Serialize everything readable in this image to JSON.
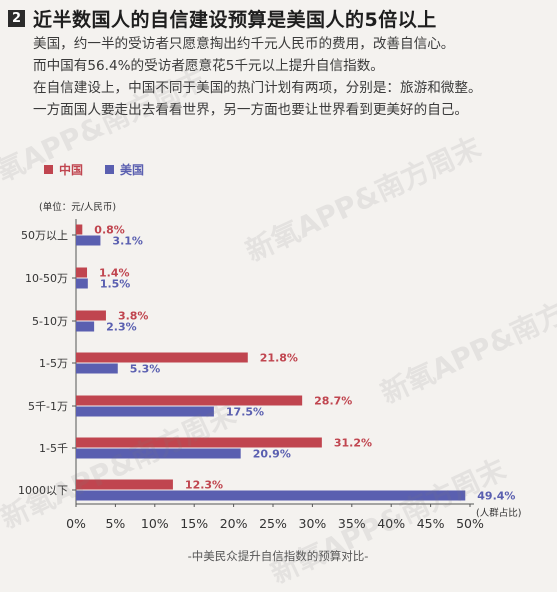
{
  "header": {
    "badge": "2",
    "title": "近半数国人的自信建设预算是美国人的5倍以上"
  },
  "paragraph": [
    "美国，约一半的受访者只愿意掏出约千元人民币的费用，改善自信心。",
    "而中国有56.4%的受访者愿意花5千元以上提升自信指数。",
    "在自信建设上，中国不同于美国的热门计划有两项，分别是：旅游和微整。",
    "一方面国人要走出去看看世界，另一方面也要让世界看到更美好的自己。"
  ],
  "watermark": "新氧APP&南方周末",
  "colors": {
    "china": "#c0454f",
    "usa": "#5a5fb0"
  },
  "chart_data": {
    "type": "bar",
    "orientation": "horizontal",
    "unit_label": "(单位：元/人民币)",
    "x_label": "(人群占比)",
    "caption": "-中美民众提升自信指数的预算对比-",
    "categories": [
      "50万以上",
      "10-50万",
      "5-10万",
      "1-5万",
      "5千-1万",
      "1-5千",
      "1000以下"
    ],
    "series": [
      {
        "name": "中国",
        "values": [
          0.8,
          1.4,
          3.8,
          21.8,
          28.7,
          31.2,
          12.3
        ],
        "labels": [
          "0.8%",
          "1.4%",
          "3.8%",
          "21.8%",
          "28.7%",
          "31.2%",
          "12.3%"
        ]
      },
      {
        "name": "美国",
        "values": [
          3.1,
          1.5,
          2.3,
          5.3,
          17.5,
          20.9,
          49.4
        ],
        "labels": [
          "3.1%",
          "1.5%",
          "2.3%",
          "5.3%",
          "17.5%",
          "20.9%",
          "49.4%"
        ]
      }
    ],
    "xlim": [
      0,
      50
    ],
    "xticks": [
      "0%",
      "5%",
      "10%",
      "15%",
      "20%",
      "25%",
      "30%",
      "35%",
      "40%",
      "45%",
      "50%"
    ],
    "grid": false,
    "legend_position": "top-left"
  }
}
